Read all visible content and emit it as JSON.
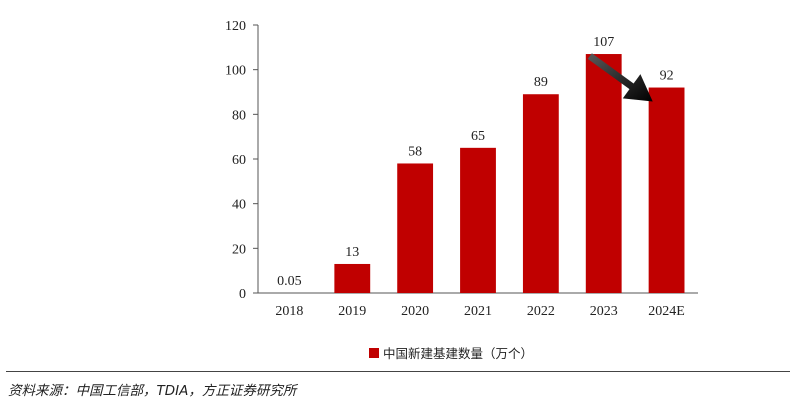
{
  "chart_data": {
    "type": "bar",
    "categories": [
      "2018",
      "2019",
      "2020",
      "2021",
      "2022",
      "2023",
      "2024E"
    ],
    "series": [
      {
        "name": "中国新建基建数量（万个）",
        "values": [
          0.05,
          13,
          58,
          65,
          89,
          107,
          92
        ],
        "labels": [
          "0.05",
          "13",
          "58",
          "65",
          "89",
          "107",
          "92"
        ],
        "color": "#C00000"
      }
    ],
    "ylim": [
      0,
      120
    ],
    "yticks": [
      0,
      20,
      40,
      60,
      80,
      100,
      120
    ],
    "legend_position": "bottom",
    "grid": false,
    "annotation": {
      "type": "arrow",
      "from_category": "2023",
      "to_category": "2024E",
      "color": "#000000"
    }
  },
  "legend": {
    "label": "中国新建基建数量（万个）"
  },
  "source": "资料来源：中国工信部，TDIA，方正证券研究所"
}
